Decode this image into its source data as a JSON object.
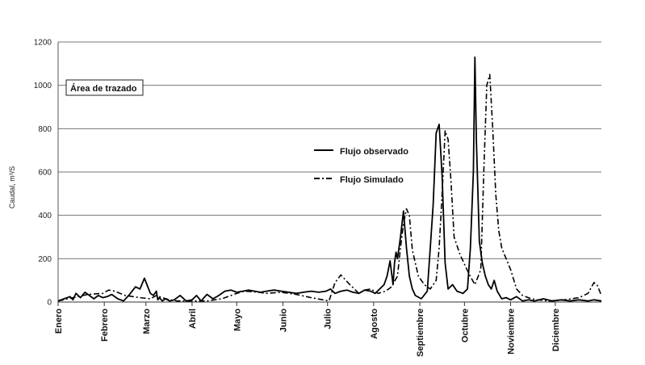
{
  "chart_data": {
    "type": "line",
    "ylabel": "Caudal, m³/S",
    "ylim": [
      0,
      1200
    ],
    "yticks": [
      0,
      200,
      400,
      600,
      800,
      1000,
      1200
    ],
    "xlim": [
      0,
      365
    ],
    "grid": "horizontal",
    "months": [
      {
        "label": "Enero",
        "day": 0
      },
      {
        "label": "Febrero",
        "day": 31
      },
      {
        "label": "Marzo",
        "day": 59
      },
      {
        "label": "Abril",
        "day": 90
      },
      {
        "label": "Mayo",
        "day": 120
      },
      {
        "label": "Junio",
        "day": 151
      },
      {
        "label": "Julio",
        "day": 181
      },
      {
        "label": "Agosto",
        "day": 212
      },
      {
        "label": "Septiembre",
        "day": 243
      },
      {
        "label": "Octubre",
        "day": 273
      },
      {
        "label": "Noviembre",
        "day": 304
      },
      {
        "label": "Diciembre",
        "day": 334
      }
    ],
    "plot_area_label": "Área de trazado",
    "legend_position": "center",
    "series": [
      {
        "name": "Flujo observado",
        "style": "solid",
        "x": [
          0,
          4,
          8,
          10,
          12,
          15,
          18,
          21,
          24,
          27,
          30,
          33,
          36,
          40,
          44,
          48,
          52,
          55,
          58,
          62,
          64,
          66,
          67,
          68,
          70,
          72,
          75,
          78,
          82,
          86,
          90,
          93,
          96,
          100,
          104,
          108,
          112,
          116,
          120,
          124,
          128,
          132,
          136,
          140,
          145,
          150,
          155,
          160,
          165,
          170,
          175,
          180,
          183,
          186,
          190,
          194,
          198,
          202,
          206,
          210,
          213,
          216,
          219,
          221,
          223,
          225,
          226,
          227,
          228,
          230,
          232,
          234,
          236,
          238,
          240,
          244,
          248,
          250,
          252,
          254,
          256,
          258,
          260,
          262,
          265,
          268,
          272,
          275,
          277,
          279,
          280,
          281,
          283,
          285,
          287,
          289,
          291,
          293,
          295,
          298,
          301,
          304,
          308,
          312,
          316,
          320,
          326,
          332,
          338,
          344,
          350,
          356,
          360,
          365
        ],
        "y": [
          5,
          15,
          25,
          10,
          40,
          20,
          45,
          30,
          15,
          30,
          20,
          25,
          35,
          15,
          5,
          35,
          70,
          60,
          110,
          40,
          30,
          50,
          10,
          20,
          5,
          15,
          5,
          10,
          30,
          5,
          10,
          30,
          5,
          35,
          15,
          30,
          50,
          55,
          45,
          50,
          55,
          50,
          45,
          50,
          55,
          50,
          45,
          40,
          45,
          50,
          45,
          50,
          60,
          40,
          50,
          55,
          45,
          40,
          55,
          50,
          40,
          60,
          80,
          120,
          190,
          80,
          180,
          230,
          200,
          300,
          420,
          250,
          120,
          60,
          30,
          15,
          50,
          250,
          450,
          780,
          820,
          580,
          180,
          60,
          80,
          50,
          40,
          60,
          250,
          600,
          1130,
          750,
          280,
          180,
          120,
          80,
          60,
          100,
          50,
          15,
          20,
          10,
          25,
          5,
          10,
          5,
          15,
          5,
          10,
          5,
          10,
          5,
          10,
          5
        ]
      },
      {
        "name": "Flujo Simulado",
        "style": "dash-dot",
        "x": [
          0,
          10,
          20,
          30,
          34,
          38,
          45,
          55,
          62,
          66,
          70,
          75,
          80,
          90,
          100,
          110,
          120,
          125,
          135,
          140,
          150,
          160,
          170,
          178,
          182,
          186,
          190,
          196,
          202,
          206,
          210,
          215,
          220,
          224,
          228,
          230,
          232,
          234,
          236,
          238,
          242,
          246,
          250,
          254,
          256,
          258,
          260,
          262,
          264,
          266,
          270,
          276,
          280,
          284,
          286,
          288,
          290,
          292,
          294,
          296,
          298,
          304,
          308,
          312,
          318,
          322,
          330,
          340,
          350,
          356,
          360,
          362,
          365
        ],
        "y": [
          5,
          20,
          35,
          40,
          55,
          50,
          30,
          20,
          15,
          30,
          20,
          10,
          5,
          5,
          5,
          15,
          40,
          50,
          45,
          40,
          45,
          35,
          20,
          10,
          5,
          90,
          125,
          80,
          40,
          55,
          60,
          40,
          50,
          70,
          120,
          250,
          360,
          430,
          400,
          240,
          120,
          80,
          60,
          100,
          250,
          500,
          790,
          750,
          550,
          300,
          220,
          130,
          80,
          150,
          600,
          1000,
          1050,
          800,
          500,
          330,
          250,
          150,
          60,
          30,
          15,
          10,
          5,
          10,
          20,
          40,
          90,
          80,
          30
        ]
      }
    ]
  }
}
